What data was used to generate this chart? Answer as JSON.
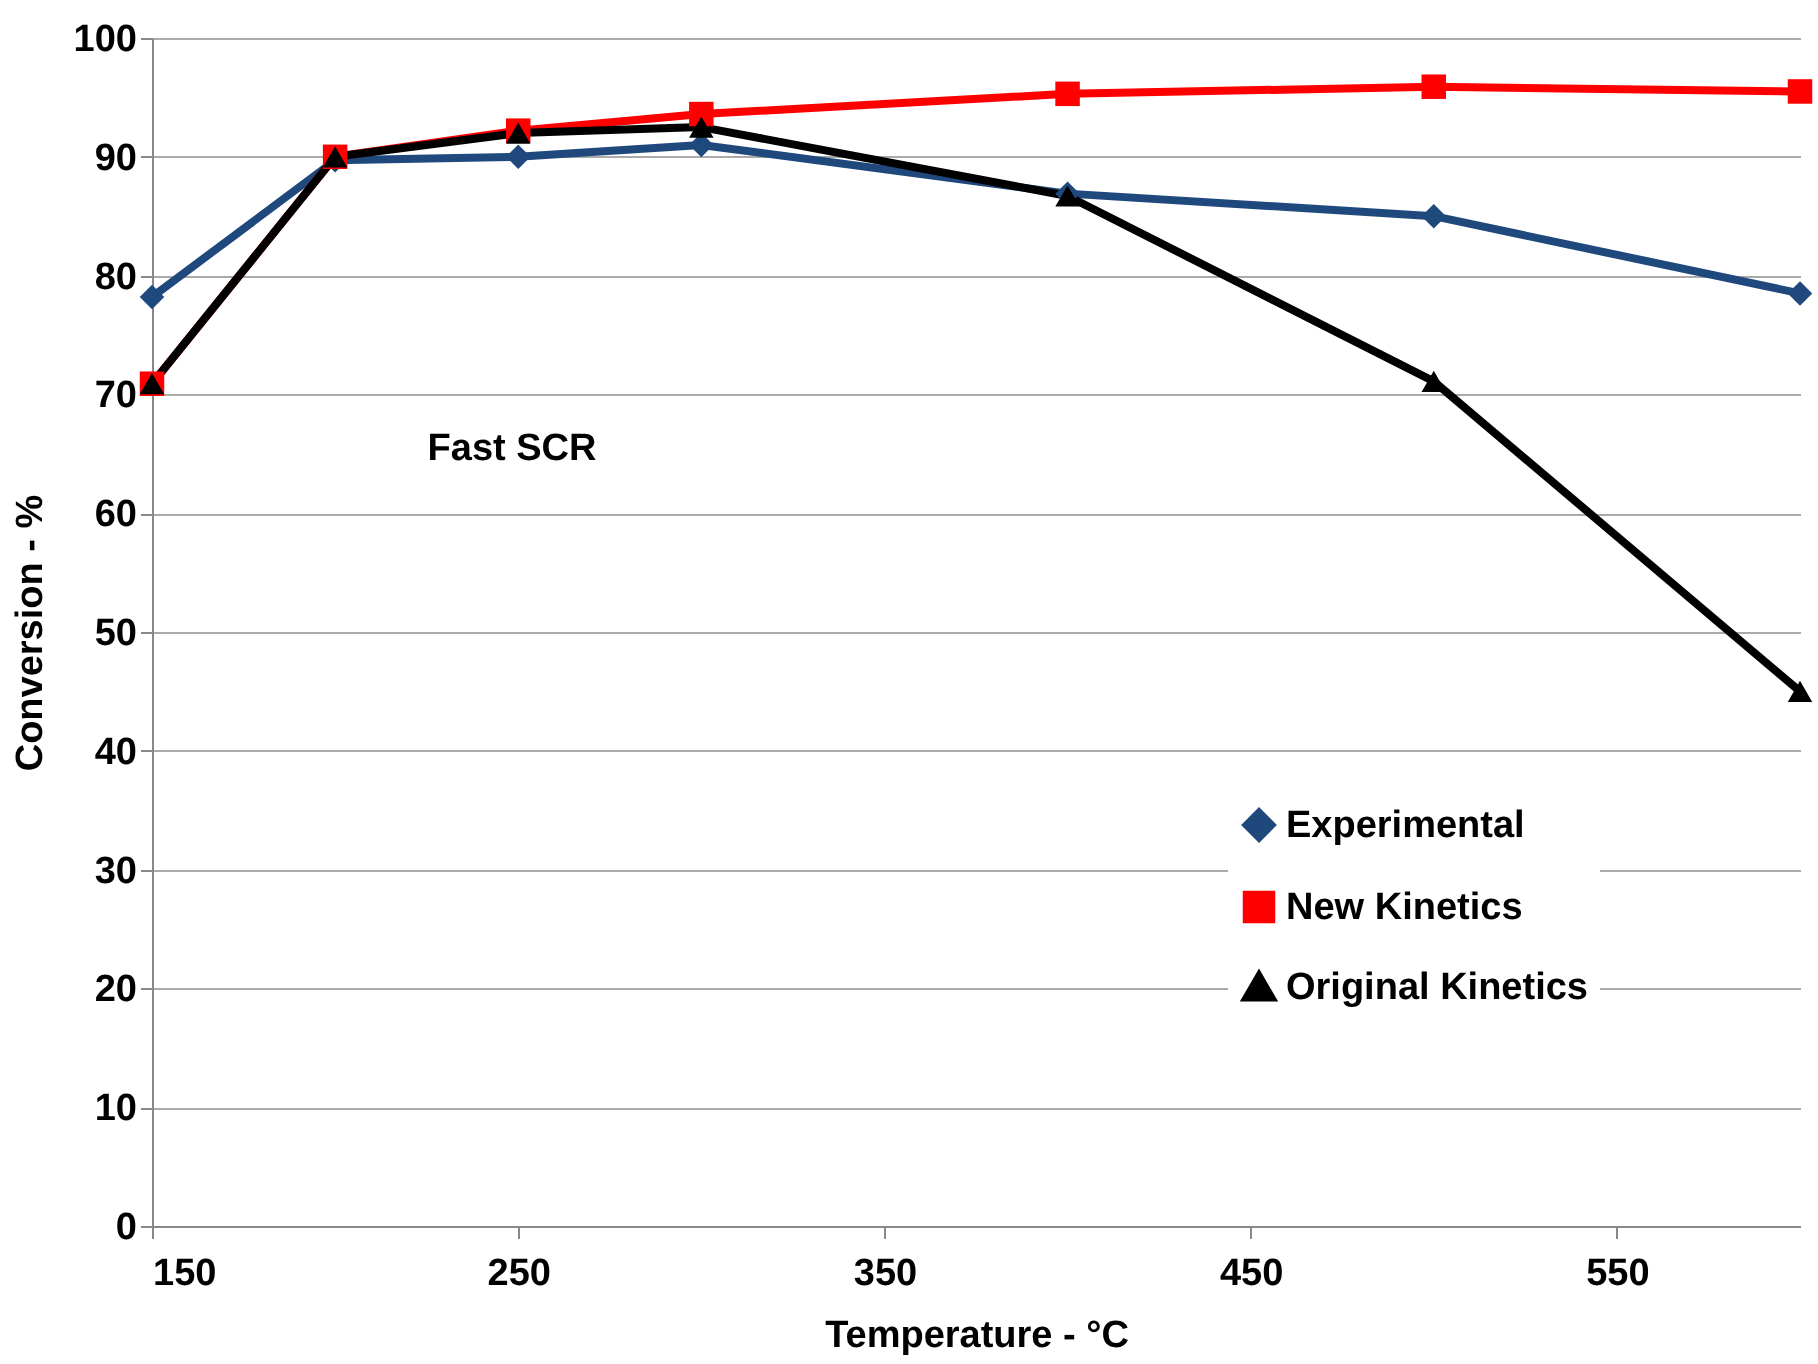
{
  "chart_data": {
    "type": "line",
    "xlabel": "Temperature - °C",
    "ylabel": "Conversion - %",
    "x": [
      150,
      200,
      250,
      300,
      400,
      500,
      600
    ],
    "series": [
      {
        "name": "Experimental",
        "color": "#1f497d",
        "marker": "diamond",
        "values": [
          78.2,
          89.7,
          90.0,
          91.0,
          86.9,
          85.0,
          78.5
        ]
      },
      {
        "name": "New Kinetics",
        "color": "#ff0000",
        "marker": "square",
        "values": [
          70.9,
          90.0,
          92.2,
          93.6,
          95.3,
          95.9,
          95.5
        ]
      },
      {
        "name": "Original Kinetics",
        "color": "#000000",
        "marker": "triangle",
        "values": [
          70.9,
          90.0,
          92.0,
          92.5,
          86.7,
          71.1,
          45.0
        ]
      }
    ],
    "xlim": [
      150,
      600
    ],
    "xticks": [
      150,
      250,
      350,
      450,
      550
    ],
    "ylim": [
      0,
      100
    ],
    "yticks": [
      0,
      10,
      20,
      30,
      40,
      50,
      60,
      70,
      80,
      90,
      100
    ],
    "grid": "y",
    "legend": "bottom right",
    "line_style": "solid",
    "annotations": [
      "Fast SCR"
    ]
  }
}
